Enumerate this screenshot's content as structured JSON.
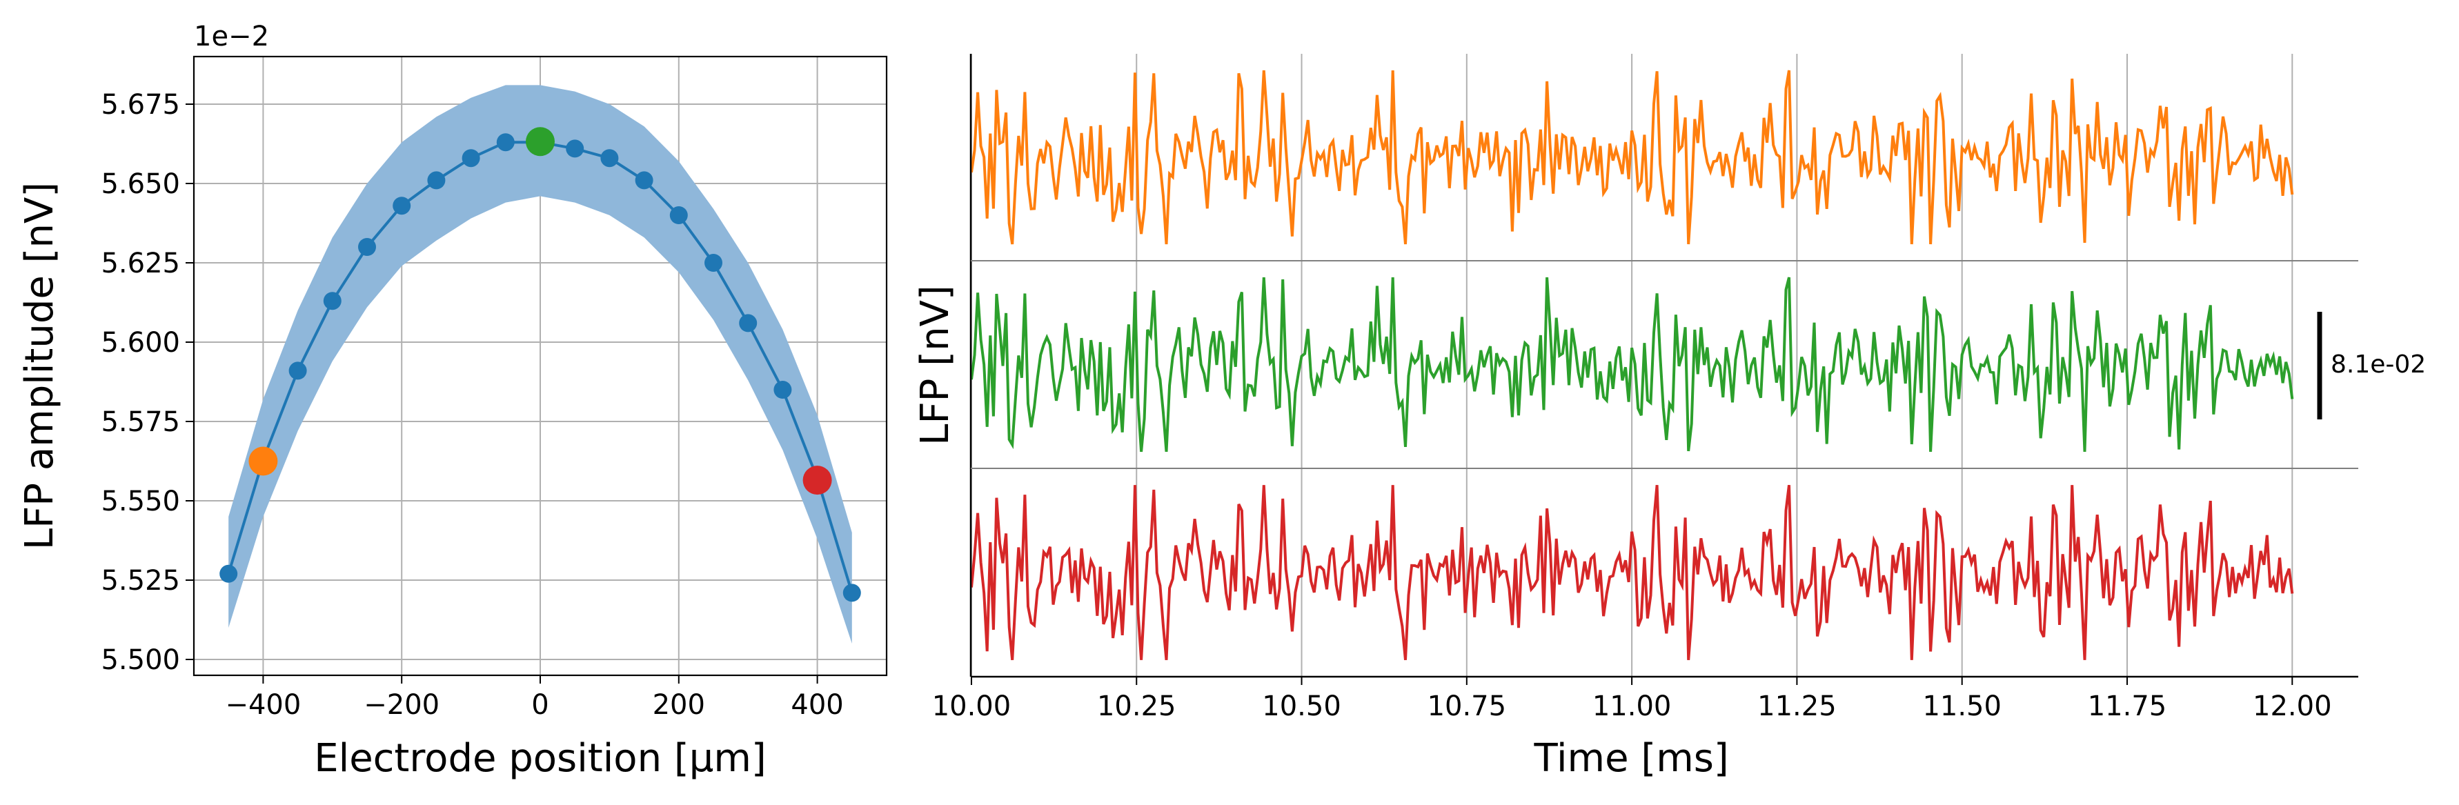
{
  "chart_data": [
    {
      "type": "line",
      "title": "",
      "xlabel": "Electrode position [μm]",
      "ylabel": "LFP amplitude [nV]",
      "offset_label": "1e−2",
      "xlim": [
        -500,
        500
      ],
      "ylim": [
        5.495,
        5.69
      ],
      "xticks": [
        -400,
        -200,
        0,
        200,
        400
      ],
      "xtick_labels": [
        "−400",
        "−200",
        "0",
        "200",
        "400"
      ],
      "yticks": [
        5.5,
        5.525,
        5.55,
        5.575,
        5.6,
        5.625,
        5.65,
        5.675
      ],
      "ytick_labels": [
        "5.500",
        "5.525",
        "5.550",
        "5.575",
        "5.600",
        "5.625",
        "5.650",
        "5.675"
      ],
      "grid": true,
      "series": [
        {
          "x": [
            -450,
            -400,
            -350,
            -300,
            -250,
            -200,
            -150,
            -100,
            -50,
            0,
            50,
            100,
            150,
            200,
            250,
            300,
            350,
            400,
            450
          ],
          "y": [
            5.527,
            5.563,
            5.591,
            5.613,
            5.63,
            5.643,
            5.651,
            5.658,
            5.663,
            5.663,
            5.661,
            5.658,
            5.651,
            5.64,
            5.625,
            5.606,
            5.585,
            5.557,
            5.521
          ],
          "band_upper": [
            5.545,
            5.582,
            5.61,
            5.633,
            5.65,
            5.663,
            5.671,
            5.677,
            5.681,
            5.681,
            5.679,
            5.675,
            5.668,
            5.657,
            5.642,
            5.625,
            5.604,
            5.577,
            5.54
          ],
          "band_lower": [
            5.51,
            5.545,
            5.572,
            5.594,
            5.611,
            5.624,
            5.632,
            5.639,
            5.644,
            5.646,
            5.644,
            5.64,
            5.633,
            5.622,
            5.607,
            5.588,
            5.566,
            5.538,
            5.505
          ],
          "color": "#1f77b4",
          "band_color": "#8fb7da"
        }
      ],
      "highlights": [
        {
          "x": -400,
          "y": 5.5625,
          "color": "#ff7f0e"
        },
        {
          "x": 0,
          "y": 5.6632,
          "color": "#2ca02c"
        },
        {
          "x": 400,
          "y": 5.5565,
          "color": "#d62728"
        }
      ]
    },
    {
      "type": "line",
      "title": "",
      "xlabel": "Time [ms]",
      "ylabel": "LFP [nV]",
      "xlim": [
        9.999,
        12.1
      ],
      "xticks": [
        10.0,
        10.25,
        10.5,
        10.75,
        11.0,
        11.25,
        11.5,
        11.75,
        12.0
      ],
      "xtick_labels": [
        "10.00",
        "10.25",
        "10.50",
        "10.75",
        "11.00",
        "11.25",
        "11.50",
        "11.75",
        "12.00"
      ],
      "grid": true,
      "scale_bar_label": "8.1e-02",
      "series": [
        {
          "name": "",
          "color": "#ff7f0e",
          "t_start": 10.0,
          "t_end": 12.0,
          "seed": 11
        },
        {
          "name": "",
          "color": "#2ca02c",
          "t_start": 10.0,
          "t_end": 12.0,
          "seed": 23
        },
        {
          "name": "",
          "color": "#d62728",
          "t_start": 10.0,
          "t_end": 12.0,
          "seed": 37
        }
      ]
    }
  ]
}
